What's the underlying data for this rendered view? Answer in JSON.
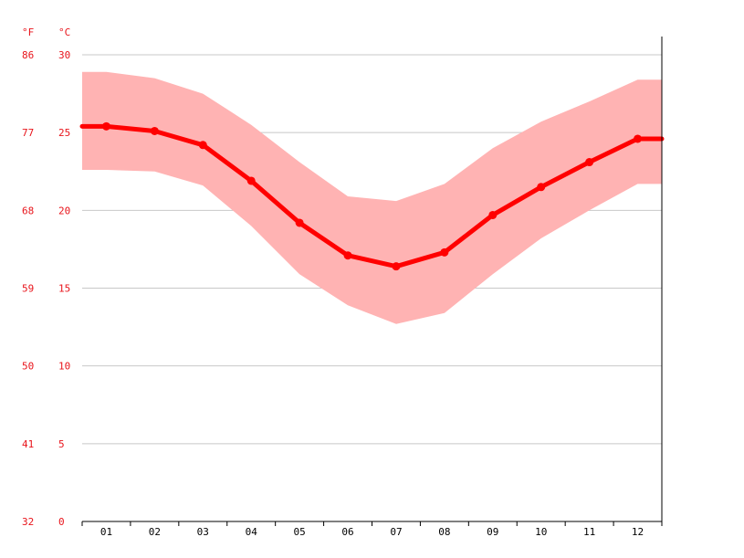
{
  "chart_data": {
    "type": "line",
    "title": "",
    "xlabel": "",
    "ylabel": "",
    "units": {
      "left": "°F",
      "right": "°C"
    },
    "categories": [
      "01",
      "02",
      "03",
      "04",
      "05",
      "06",
      "07",
      "08",
      "09",
      "10",
      "11",
      "12"
    ],
    "ylim": [
      0,
      30
    ],
    "y_ticks_c": [
      0,
      5,
      10,
      15,
      20,
      25,
      30
    ],
    "y_ticks_f": [
      32,
      41,
      50,
      59,
      68,
      77,
      86
    ],
    "grid": true,
    "series": [
      {
        "role": "mean",
        "values": [
          25.4,
          25.1,
          24.2,
          21.9,
          19.2,
          17.1,
          16.4,
          17.3,
          19.7,
          21.5,
          23.1,
          24.6
        ],
        "color": "#ff0000"
      },
      {
        "role": "band",
        "max": [
          28.9,
          28.5,
          27.5,
          25.5,
          23.1,
          20.9,
          20.6,
          21.7,
          24.0,
          25.7,
          27.0,
          28.4
        ],
        "min": [
          22.6,
          22.5,
          21.6,
          19.0,
          15.9,
          13.9,
          12.7,
          13.4,
          15.9,
          18.2,
          20.0,
          21.7
        ],
        "color": "#ffb3b3"
      }
    ]
  }
}
